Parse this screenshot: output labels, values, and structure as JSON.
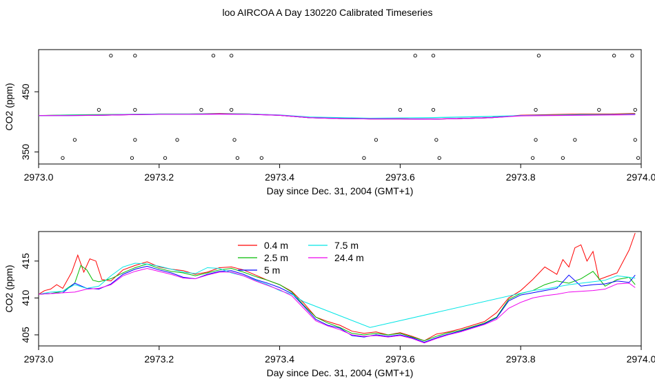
{
  "figure_title": "loo AIRCOA A  Day 130220  Calibrated Timeseries",
  "chart_data": [
    {
      "type": "line",
      "title": "",
      "xlabel": "Day since Dec. 31, 2004 (GMT+1)",
      "ylabel": "CO2 (ppm)",
      "xlim": [
        2973.0,
        2974.0
      ],
      "ylim": [
        330,
        520
      ],
      "xticks": [
        2973.0,
        2973.2,
        2973.4,
        2973.6,
        2973.8,
        2974.0
      ],
      "yticks": [
        350,
        450
      ],
      "xtick_labels": [
        "2973.0",
        "2973.2",
        "2973.4",
        "2973.6",
        "2973.8",
        "2974.0"
      ],
      "ytick_labels": [
        "350",
        "450"
      ],
      "colors": [
        "#ff0000",
        "#00bb00",
        "#0000ff",
        "#00e5e5",
        "#ee00ee"
      ],
      "series_x": [
        2973.0,
        2973.05,
        2973.1,
        2973.15,
        2973.2,
        2973.25,
        2973.3,
        2973.35,
        2973.4,
        2973.45,
        2973.5,
        2973.55,
        2973.6,
        2973.65,
        2973.7,
        2973.75,
        2973.8,
        2973.85,
        2973.9,
        2973.95,
        2973.99
      ],
      "series": [
        {
          "values": [
            410.5,
            411,
            411,
            412,
            413,
            413,
            414,
            413,
            411,
            407,
            406,
            405,
            405,
            404.5,
            405.5,
            407,
            411,
            412,
            413,
            413,
            414
          ]
        },
        {
          "values": [
            410.5,
            411.5,
            412,
            412.5,
            413,
            413,
            413.5,
            413,
            411,
            407,
            405.5,
            405,
            405,
            404.5,
            405.5,
            407,
            410.5,
            411,
            412,
            412,
            413
          ]
        },
        {
          "values": [
            410.5,
            410.5,
            411,
            412,
            412.5,
            412.5,
            413,
            412.5,
            411,
            407,
            405.5,
            405,
            405,
            404.5,
            405.5,
            407,
            410.5,
            411,
            411.5,
            412,
            412.5
          ]
        },
        {
          "values": [
            410.5,
            411,
            411.5,
            412.5,
            413,
            413,
            413.5,
            413,
            411.5,
            408,
            407,
            406,
            406.5,
            407,
            408,
            409,
            410.5,
            411,
            412,
            412,
            413
          ]
        },
        {
          "values": [
            410.5,
            410.5,
            411,
            412,
            412.5,
            412.5,
            413,
            412.5,
            411,
            407,
            405.5,
            405,
            405,
            404.5,
            405.5,
            407,
            410,
            410.5,
            411,
            411.5,
            412
          ]
        }
      ],
      "qc_points": [
        [
          2973.04,
          340
        ],
        [
          2973.06,
          370
        ],
        [
          2973.1,
          420
        ],
        [
          2973.12,
          510
        ],
        [
          2973.155,
          340
        ],
        [
          2973.16,
          370
        ],
        [
          2973.16,
          420
        ],
        [
          2973.16,
          510
        ],
        [
          2973.21,
          340
        ],
        [
          2973.23,
          370
        ],
        [
          2973.27,
          420
        ],
        [
          2973.29,
          510
        ],
        [
          2973.32,
          510
        ],
        [
          2973.32,
          420
        ],
        [
          2973.325,
          370
        ],
        [
          2973.33,
          340
        ],
        [
          2973.37,
          340
        ],
        [
          2973.54,
          340
        ],
        [
          2973.56,
          370
        ],
        [
          2973.6,
          420
        ],
        [
          2973.625,
          510
        ],
        [
          2973.655,
          510
        ],
        [
          2973.655,
          420
        ],
        [
          2973.66,
          370
        ],
        [
          2973.665,
          340
        ],
        [
          2973.82,
          340
        ],
        [
          2973.825,
          370
        ],
        [
          2973.825,
          420
        ],
        [
          2973.83,
          510
        ],
        [
          2973.87,
          340
        ],
        [
          2973.89,
          370
        ],
        [
          2973.93,
          420
        ],
        [
          2973.955,
          510
        ],
        [
          2973.985,
          510
        ],
        [
          2973.99,
          420
        ],
        [
          2973.99,
          370
        ],
        [
          2973.995,
          340
        ]
      ]
    },
    {
      "type": "line",
      "title": "",
      "xlabel": "Day since Dec. 31, 2004 (GMT+1)",
      "ylabel": "CO2 (ppm)",
      "xlim": [
        2973.0,
        2974.0
      ],
      "ylim": [
        403.5,
        419
      ],
      "xticks": [
        2973.0,
        2973.2,
        2973.4,
        2973.6,
        2973.8,
        2974.0
      ],
      "yticks": [
        405,
        410,
        415
      ],
      "xtick_labels": [
        "2973.0",
        "2973.2",
        "2973.4",
        "2973.6",
        "2973.8",
        "2974.0"
      ],
      "ytick_labels": [
        "405",
        "410",
        "415"
      ],
      "legend_position": "top-center",
      "series": [
        {
          "name": "0.4 m",
          "color": "#ff0000",
          "x": [
            2973.0,
            2973.01,
            2973.02,
            2973.03,
            2973.04,
            2973.055,
            2973.065,
            2973.075,
            2973.085,
            2973.095,
            2973.105,
            2973.12,
            2973.14,
            2973.16,
            2973.18,
            2973.2,
            2973.22,
            2973.24,
            2973.26,
            2973.28,
            2973.3,
            2973.32,
            2973.34,
            2973.36,
            2973.38,
            2973.4,
            2973.42,
            2973.44,
            2973.46,
            2973.48,
            2973.5,
            2973.52,
            2973.54,
            2973.56,
            2973.58,
            2973.6,
            2973.62,
            2973.64,
            2973.66,
            2973.68,
            2973.7,
            2973.72,
            2973.74,
            2973.76,
            2973.78,
            2973.8,
            2973.82,
            2973.84,
            2973.86,
            2973.87,
            2973.88,
            2973.89,
            2973.9,
            2973.91,
            2973.92,
            2973.93,
            2973.94,
            2973.96,
            2973.98,
            2973.99
          ],
          "values": [
            410.5,
            411,
            411.2,
            411.8,
            411.3,
            413.5,
            415.8,
            413.5,
            415.3,
            415,
            412.5,
            412.3,
            413.8,
            414.4,
            414.9,
            414.2,
            413.9,
            413.7,
            413.2,
            413.5,
            414.1,
            414.2,
            413.8,
            413.1,
            412.4,
            411.8,
            410.9,
            409.3,
            407.4,
            406.8,
            406.3,
            405.5,
            405.2,
            405.4,
            405.0,
            405.3,
            404.8,
            404.2,
            405.1,
            405.4,
            405.8,
            406.3,
            406.8,
            408.0,
            410.0,
            411.0,
            412.5,
            414.2,
            413.2,
            415.2,
            414.2,
            416.8,
            417.2,
            415.0,
            416.3,
            412.5,
            412.8,
            413.4,
            416.5,
            418.8
          ]
        },
        {
          "name": "2.5 m",
          "color": "#00bb00",
          "x": [
            2973.0,
            2973.02,
            2973.04,
            2973.06,
            2973.07,
            2973.08,
            2973.09,
            2973.1,
            2973.12,
            2973.14,
            2973.16,
            2973.18,
            2973.2,
            2973.22,
            2973.24,
            2973.26,
            2973.28,
            2973.3,
            2973.32,
            2973.34,
            2973.36,
            2973.38,
            2973.4,
            2973.42,
            2973.44,
            2973.46,
            2973.48,
            2973.5,
            2973.52,
            2973.54,
            2973.56,
            2973.58,
            2973.6,
            2973.62,
            2973.64,
            2973.66,
            2973.68,
            2973.7,
            2973.72,
            2973.74,
            2973.76,
            2973.78,
            2973.8,
            2973.82,
            2973.84,
            2973.86,
            2973.88,
            2973.9,
            2973.92,
            2973.94,
            2973.96,
            2973.98,
            2973.99
          ],
          "values": [
            410.5,
            410.6,
            410.9,
            412.0,
            414.4,
            413.8,
            412.4,
            412.2,
            412.6,
            413.4,
            414.1,
            414.6,
            414.0,
            413.6,
            413.4,
            413.0,
            413.4,
            413.8,
            414.0,
            413.5,
            412.9,
            412.4,
            411.8,
            410.8,
            409.0,
            407.4,
            406.6,
            406.0,
            405.2,
            405.0,
            405.2,
            405.0,
            405.2,
            404.7,
            404.2,
            404.8,
            405.3,
            405.6,
            406.1,
            406.6,
            407.4,
            409.8,
            410.6,
            411.0,
            411.8,
            412.3,
            412.0,
            412.6,
            413.6,
            411.6,
            412.5,
            412.8,
            411.8
          ]
        },
        {
          "name": "5 m",
          "color": "#0000ff",
          "x": [
            2973.0,
            2973.02,
            2973.04,
            2973.06,
            2973.08,
            2973.1,
            2973.12,
            2973.14,
            2973.16,
            2973.18,
            2973.2,
            2973.22,
            2973.24,
            2973.26,
            2973.28,
            2973.3,
            2973.32,
            2973.34,
            2973.36,
            2973.38,
            2973.4,
            2973.42,
            2973.44,
            2973.46,
            2973.48,
            2973.5,
            2973.52,
            2973.54,
            2973.56,
            2973.58,
            2973.6,
            2973.62,
            2973.64,
            2973.66,
            2973.68,
            2973.7,
            2973.72,
            2973.74,
            2973.76,
            2973.78,
            2973.8,
            2973.82,
            2973.84,
            2973.86,
            2973.88,
            2973.9,
            2973.92,
            2973.94,
            2973.96,
            2973.98,
            2973.99
          ],
          "values": [
            410.5,
            410.6,
            410.7,
            412.0,
            411.3,
            411.2,
            411.9,
            413.2,
            413.9,
            414.3,
            413.8,
            413.4,
            412.8,
            412.6,
            413.2,
            413.6,
            413.7,
            413.2,
            412.5,
            412.0,
            411.4,
            410.6,
            408.9,
            407.1,
            406.3,
            405.9,
            404.9,
            404.7,
            405.0,
            404.8,
            405.0,
            404.6,
            404.0,
            404.6,
            405.1,
            405.5,
            406.0,
            406.5,
            407.3,
            409.6,
            410.4,
            410.7,
            411.0,
            411.3,
            413.1,
            411.6,
            411.8,
            411.9,
            412.3,
            412.1,
            413.1
          ]
        },
        {
          "name": "7.5 m",
          "color": "#00e5e5",
          "x": [
            2973.0,
            2973.02,
            2973.04,
            2973.06,
            2973.08,
            2973.1,
            2973.12,
            2973.14,
            2973.16,
            2973.18,
            2973.2,
            2973.22,
            2973.24,
            2973.26,
            2973.28,
            2973.3,
            2973.32,
            2973.34,
            2973.36,
            2973.38,
            2973.4,
            2973.42,
            2973.44,
            2973.55,
            2973.82,
            2973.84,
            2973.86,
            2973.88,
            2973.9,
            2973.92,
            2973.94,
            2973.96,
            2973.98,
            2973.99
          ],
          "values": [
            410.5,
            410.8,
            410.9,
            411.8,
            411.3,
            411.6,
            413.0,
            414.2,
            414.7,
            414.6,
            414.3,
            413.9,
            413.5,
            413.3,
            414.1,
            414.0,
            413.4,
            413.0,
            412.4,
            411.8,
            411.0,
            410.5,
            409.5,
            406.0,
            411.0,
            411.2,
            411.5,
            411.8,
            412.0,
            412.2,
            412.4,
            413.0,
            412.8,
            412.7
          ]
        },
        {
          "name": "24.4 m",
          "color": "#ee00ee",
          "x": [
            2973.0,
            2973.02,
            2973.04,
            2973.06,
            2973.08,
            2973.1,
            2973.12,
            2973.14,
            2973.16,
            2973.18,
            2973.2,
            2973.22,
            2973.24,
            2973.26,
            2973.28,
            2973.3,
            2973.32,
            2973.34,
            2973.36,
            2973.38,
            2973.4,
            2973.42,
            2973.44,
            2973.46,
            2973.48,
            2973.5,
            2973.52,
            2973.54,
            2973.56,
            2973.58,
            2973.6,
            2973.62,
            2973.64,
            2973.66,
            2973.68,
            2973.7,
            2973.72,
            2973.74,
            2973.76,
            2973.78,
            2973.8,
            2973.82,
            2973.84,
            2973.86,
            2973.88,
            2973.9,
            2973.92,
            2973.94,
            2973.96,
            2973.98,
            2973.99
          ],
          "values": [
            410.5,
            410.6,
            410.7,
            410.8,
            411.2,
            411.3,
            411.8,
            413.0,
            413.6,
            414.0,
            413.6,
            413.2,
            412.7,
            412.6,
            413.1,
            413.5,
            413.5,
            413.0,
            412.3,
            411.7,
            411.1,
            410.3,
            408.6,
            406.9,
            406.2,
            405.7,
            405.0,
            404.8,
            404.9,
            404.7,
            404.9,
            404.5,
            403.9,
            404.5,
            405.0,
            405.4,
            405.9,
            406.4,
            407.1,
            408.6,
            409.4,
            410.0,
            410.3,
            410.5,
            410.8,
            410.9,
            411.0,
            411.2,
            411.9,
            412.0,
            411.4
          ]
        }
      ]
    }
  ]
}
